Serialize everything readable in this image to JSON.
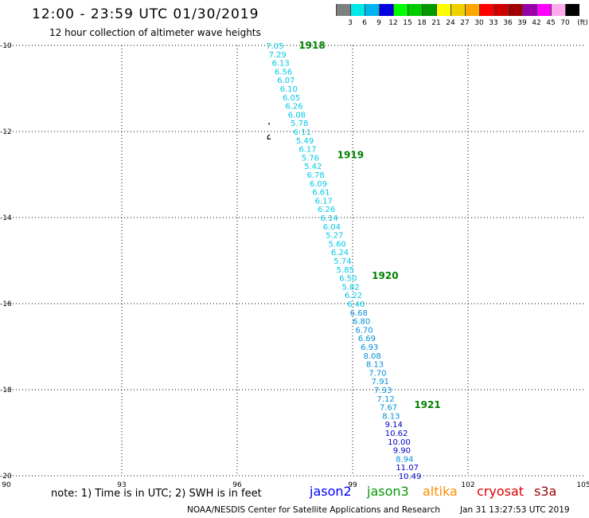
{
  "header": {
    "title": "12:00 - 23:59 UTC 01/30/2019",
    "subtitle": "12 hour collection of altimeter wave heights"
  },
  "legend": {
    "unit": "(ft)",
    "swatches": [
      {
        "label": "",
        "color": "#7f7f7f"
      },
      {
        "label": "3",
        "color": "#00e8e8"
      },
      {
        "label": "6",
        "color": "#00b4f0"
      },
      {
        "label": "9",
        "color": "#0000e0"
      },
      {
        "label": "12",
        "color": "#00ff00"
      },
      {
        "label": "15",
        "color": "#00cc00"
      },
      {
        "label": "18",
        "color": "#009900"
      },
      {
        "label": "21",
        "color": "#ffff00"
      },
      {
        "label": "24",
        "color": "#f0d000"
      },
      {
        "label": "27",
        "color": "#ffa500"
      },
      {
        "label": "30",
        "color": "#ff0000"
      },
      {
        "label": "33",
        "color": "#d00000"
      },
      {
        "label": "36",
        "color": "#a00000"
      },
      {
        "label": "39",
        "color": "#9900aa"
      },
      {
        "label": "42",
        "color": "#ff00ff"
      },
      {
        "label": "45",
        "color": "#ffaaee"
      },
      {
        "label": "70",
        "color": "#000000"
      }
    ]
  },
  "axes": {
    "x_ticks": [
      "90",
      "93",
      "96",
      "99",
      "102",
      "105"
    ],
    "y_ticks": [
      "-10",
      "-12",
      "-14",
      "-16",
      "-18",
      "-20"
    ],
    "lon_range": [
      90,
      105
    ],
    "lat_range": [
      -20,
      -10
    ]
  },
  "colors": {
    "light": "#00c8e8",
    "medium": "#0090d8",
    "dark": "#0000c8",
    "time": "#008000",
    "grid": "#000000"
  },
  "track": [
    {
      "v": "7.05",
      "lon": 96.98,
      "lat": -10.0,
      "c": "light"
    },
    {
      "v": "7.29",
      "lon": 97.05,
      "lat": -10.2,
      "c": "light"
    },
    {
      "v": "6.13",
      "lon": 97.13,
      "lat": -10.4,
      "c": "light"
    },
    {
      "v": "6.56",
      "lon": 97.2,
      "lat": -10.6,
      "c": "light"
    },
    {
      "v": "6.07",
      "lon": 97.27,
      "lat": -10.8,
      "c": "light"
    },
    {
      "v": "6.10",
      "lon": 97.34,
      "lat": -11.0,
      "c": "light"
    },
    {
      "v": "6.05",
      "lon": 97.41,
      "lat": -11.2,
      "c": "light"
    },
    {
      "v": "6.26",
      "lon": 97.48,
      "lat": -11.4,
      "c": "light"
    },
    {
      "v": "6.08",
      "lon": 97.55,
      "lat": -11.6,
      "c": "light"
    },
    {
      "v": "5.78",
      "lon": 97.62,
      "lat": -11.8,
      "c": "light"
    },
    {
      "v": "6.11",
      "lon": 97.69,
      "lat": -12.0,
      "c": "light"
    },
    {
      "v": "5.49",
      "lon": 97.76,
      "lat": -12.2,
      "c": "light"
    },
    {
      "v": "6.17",
      "lon": 97.83,
      "lat": -12.4,
      "c": "light"
    },
    {
      "v": "5.76",
      "lon": 97.9,
      "lat": -12.6,
      "c": "light"
    },
    {
      "v": "5.42",
      "lon": 97.97,
      "lat": -12.8,
      "c": "light"
    },
    {
      "v": "6.78",
      "lon": 98.04,
      "lat": -13.0,
      "c": "light"
    },
    {
      "v": "6.09",
      "lon": 98.11,
      "lat": -13.2,
      "c": "light"
    },
    {
      "v": "6.61",
      "lon": 98.18,
      "lat": -13.4,
      "c": "light"
    },
    {
      "v": "6.17",
      "lon": 98.25,
      "lat": -13.6,
      "c": "light"
    },
    {
      "v": "6.26",
      "lon": 98.32,
      "lat": -13.8,
      "c": "light"
    },
    {
      "v": "6.14",
      "lon": 98.39,
      "lat": -14.0,
      "c": "light"
    },
    {
      "v": "6.04",
      "lon": 98.46,
      "lat": -14.2,
      "c": "light"
    },
    {
      "v": "5.27",
      "lon": 98.53,
      "lat": -14.4,
      "c": "light"
    },
    {
      "v": "5.60",
      "lon": 98.6,
      "lat": -14.6,
      "c": "light"
    },
    {
      "v": "6.24",
      "lon": 98.67,
      "lat": -14.8,
      "c": "light"
    },
    {
      "v": "5.74",
      "lon": 98.74,
      "lat": -15.0,
      "c": "light"
    },
    {
      "v": "5.85",
      "lon": 98.81,
      "lat": -15.2,
      "c": "light"
    },
    {
      "v": "6.50",
      "lon": 98.88,
      "lat": -15.4,
      "c": "light"
    },
    {
      "v": "5.82",
      "lon": 98.95,
      "lat": -15.6,
      "c": "light"
    },
    {
      "v": "6.22",
      "lon": 99.02,
      "lat": -15.8,
      "c": "light"
    },
    {
      "v": "6.40",
      "lon": 99.09,
      "lat": -16.0,
      "c": "light"
    },
    {
      "v": "6.68",
      "lon": 99.16,
      "lat": -16.2,
      "c": "medium"
    },
    {
      "v": "6.80",
      "lon": 99.23,
      "lat": -16.4,
      "c": "medium"
    },
    {
      "v": "6.70",
      "lon": 99.3,
      "lat": -16.6,
      "c": "medium"
    },
    {
      "v": "6.69",
      "lon": 99.37,
      "lat": -16.8,
      "c": "medium"
    },
    {
      "v": "6.93",
      "lon": 99.44,
      "lat": -17.0,
      "c": "medium"
    },
    {
      "v": "8.08",
      "lon": 99.51,
      "lat": -17.2,
      "c": "medium"
    },
    {
      "v": "8.13",
      "lon": 99.58,
      "lat": -17.4,
      "c": "medium"
    },
    {
      "v": "7.70",
      "lon": 99.65,
      "lat": -17.6,
      "c": "medium"
    },
    {
      "v": "7.91",
      "lon": 99.72,
      "lat": -17.8,
      "c": "medium"
    },
    {
      "v": "7.93",
      "lon": 99.79,
      "lat": -18.0,
      "c": "medium"
    },
    {
      "v": "7.12",
      "lon": 99.86,
      "lat": -18.2,
      "c": "medium"
    },
    {
      "v": "7.67",
      "lon": 99.93,
      "lat": -18.4,
      "c": "medium"
    },
    {
      "v": "8.13",
      "lon": 100.0,
      "lat": -18.6,
      "c": "medium"
    },
    {
      "v": "9.14",
      "lon": 100.07,
      "lat": -18.8,
      "c": "dark"
    },
    {
      "v": "10.62",
      "lon": 100.14,
      "lat": -19.0,
      "c": "dark"
    },
    {
      "v": "10.00",
      "lon": 100.21,
      "lat": -19.2,
      "c": "dark"
    },
    {
      "v": "9.90",
      "lon": 100.28,
      "lat": -19.4,
      "c": "dark"
    },
    {
      "v": "8.94",
      "lon": 100.35,
      "lat": -19.6,
      "c": "medium"
    },
    {
      "v": "11.07",
      "lon": 100.42,
      "lat": -19.8,
      "c": "dark"
    },
    {
      "v": "10.49",
      "lon": 100.49,
      "lat": -20.0,
      "c": "dark"
    }
  ],
  "times": [
    {
      "label": "1918",
      "lon": 97.6,
      "lat": -10.0
    },
    {
      "label": "1919",
      "lon": 98.6,
      "lat": -12.55
    },
    {
      "label": "1920",
      "lon": 99.5,
      "lat": -15.35
    },
    {
      "label": "1921",
      "lon": 100.6,
      "lat": -18.35
    }
  ],
  "island": {
    "lon": 96.85,
    "lat": -12.1
  },
  "footer": {
    "note": "note: 1) Time is in UTC; 2) SWH is in feet",
    "satellites": [
      {
        "name": "jason2",
        "color": "#0000ff"
      },
      {
        "name": "jason3",
        "color": "#009900"
      },
      {
        "name": "altika",
        "color": "#ff8c00"
      },
      {
        "name": "cryosat",
        "color": "#dd0000"
      },
      {
        "name": "s3a",
        "color": "#990000"
      }
    ],
    "credit": "NOAA/NESDIS Center for Satellite Applications and Research",
    "timestamp": "Jan 31 13:27:53 UTC 2019"
  }
}
